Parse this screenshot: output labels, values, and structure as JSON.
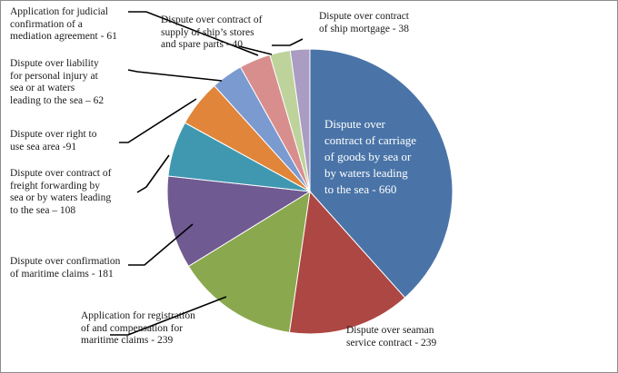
{
  "chart_data": {
    "type": "pie",
    "title": "",
    "start_angle_deg": 0,
    "direction": "clockwise",
    "slices": [
      {
        "label": "Dispute over contract of carriage of goods by sea or by waters leading to the sea",
        "value": 660,
        "color": "#4a74a8",
        "text": "Dispute over\ncontract of carriage\nof goods by sea or\nby waters leading\nto the sea - 660"
      },
      {
        "label": "Dispute over seaman service contract",
        "value": 239,
        "color": "#ad4743",
        "text": "Dispute over seaman\nservice contract - 239"
      },
      {
        "label": "Application for registration of and compensation for maritime claims",
        "value": 239,
        "color": "#8aa84d",
        "text": "Application for registration\nof and compensation for\nmaritime claims - 239"
      },
      {
        "label": "Dispute over confirmation of maritime claims",
        "value": 181,
        "color": "#705a92",
        "text": "Dispute over confirmation\nof maritime claims - 181"
      },
      {
        "label": "Dispute over contract of freight forwarding by sea or by waters leading to the sea",
        "value": 108,
        "color": "#3f98b0",
        "text": "Dispute over contract of\nfreight forwarding by\nsea or by waters leading\nto the sea – 108"
      },
      {
        "label": "Dispute over right to use sea area",
        "value": 91,
        "color": "#e0853a",
        "text": "Dispute over right to\nuse sea area -91"
      },
      {
        "label": "Dispute over liability for personal injury at sea or at waters leading to the sea",
        "value": 62,
        "color": "#7a9ad0",
        "text": "Dispute over liability\nfor personal injury at\nsea or at waters\nleading to the sea – 62"
      },
      {
        "label": "Application for judicial confirmation of a mediation agreement",
        "value": 61,
        "color": "#d88e8d",
        "text": "Application for judicial\nconfirmation of a\nmediation agreement - 61"
      },
      {
        "label": "Dispute over contract of supply of ship's stores and spare parts",
        "value": 40,
        "color": "#bdd39b",
        "text": "Dispute over contract of\nsupply of ship’s stores\nand spare parts - 40"
      },
      {
        "label": "Dispute over contract of ship mortgage",
        "value": 38,
        "color": "#aa9cc2",
        "text": "Dispute over contract\nof ship mortgage - 38"
      }
    ]
  }
}
